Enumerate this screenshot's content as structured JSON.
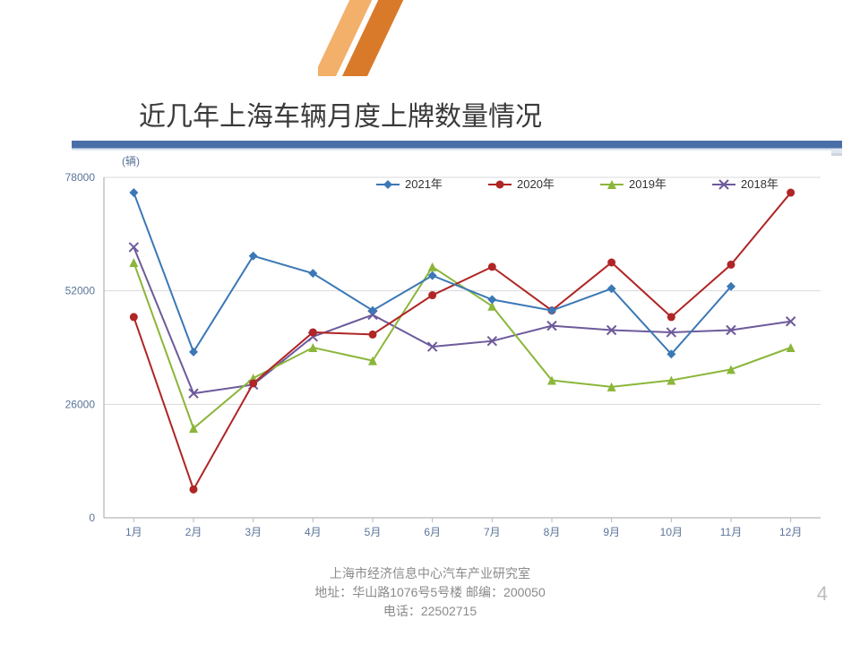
{
  "slide": {
    "title": "近几年上海车辆月度上牌数量情况",
    "page_number": "4",
    "accent_colors": {
      "dark": "#d97a2b",
      "light": "#f2b06a"
    }
  },
  "footer": {
    "line1": "上海市经济信息中心汽车产业研究室",
    "line2": "地址：华山路1076号5号楼    邮编：200050",
    "line3": "电话：22502715"
  },
  "chart": {
    "type": "line",
    "background_color": "#ffffff",
    "plot_border_color": "#b8b8b8",
    "grid_color": "#d9d9d9",
    "y_unit_label": "(辆)",
    "y_unit_color": "#5b7498",
    "y_unit_fontsize": 12,
    "ylim": [
      0,
      78000
    ],
    "yticks": [
      0,
      26000,
      52000,
      78000
    ],
    "x_categories": [
      "1月",
      "2月",
      "3月",
      "4月",
      "5月",
      "6月",
      "7月",
      "8月",
      "9月",
      "10月",
      "11月",
      "12月"
    ],
    "xlabel_color": "#5b7498",
    "xlabel_fontsize": 12,
    "marker_size": 5,
    "line_width": 2,
    "legend": {
      "position": "top-center-right",
      "fontsize": 13,
      "text_color": "#333333",
      "items": [
        {
          "label": "2021年",
          "color": "#3b78b5",
          "marker": "diamond"
        },
        {
          "label": "2020年",
          "color": "#b02525",
          "marker": "circle"
        },
        {
          "label": "2019年",
          "color": "#8bb63a",
          "marker": "triangle"
        },
        {
          "label": "2018年",
          "color": "#6d5a9b",
          "marker": "x"
        }
      ]
    },
    "series": {
      "y2021": {
        "color": "#3b78b5",
        "marker": "diamond",
        "values": [
          74500,
          38000,
          60000,
          56000,
          47500,
          55500,
          50000,
          47500,
          52500,
          37500,
          53000,
          null
        ]
      },
      "y2020": {
        "color": "#b02525",
        "marker": "circle",
        "values": [
          46000,
          6500,
          30800,
          42500,
          42000,
          51000,
          57500,
          47500,
          58500,
          46000,
          58000,
          74500
        ]
      },
      "y2019": {
        "color": "#8bb63a",
        "marker": "triangle",
        "values": [
          58500,
          20500,
          32000,
          39000,
          36000,
          57500,
          48500,
          31500,
          30000,
          31500,
          34000,
          39000
        ]
      },
      "y2018": {
        "color": "#6d5a9b",
        "marker": "x",
        "values": [
          62000,
          28500,
          30500,
          41500,
          46500,
          39200,
          40500,
          44000,
          43000,
          42500,
          43000,
          45000
        ]
      }
    }
  }
}
